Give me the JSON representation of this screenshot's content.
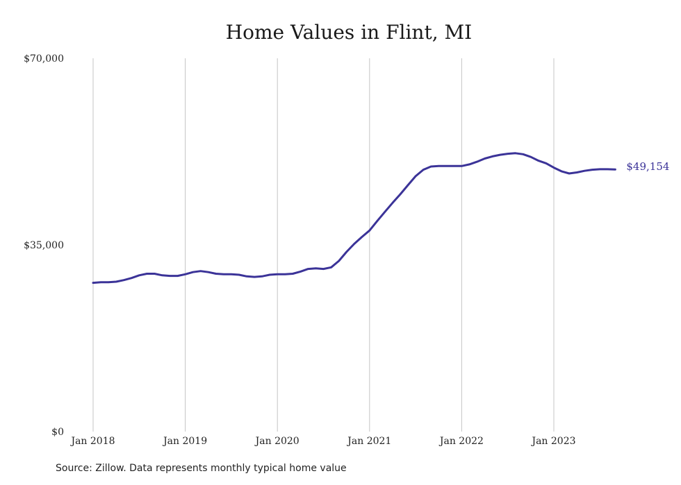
{
  "chart_data": {
    "type": "line",
    "title": "Home Values in Flint, MI",
    "xlabel": "",
    "ylabel": "",
    "ylim": [
      0,
      70000
    ],
    "y_ticks": [
      {
        "value": 0,
        "label": "$0"
      },
      {
        "value": 35000,
        "label": "$35,000"
      },
      {
        "value": 70000,
        "label": "$70,000"
      }
    ],
    "x_ticks": [
      {
        "index": 0,
        "label": "Jan 2018"
      },
      {
        "index": 12,
        "label": "Jan 2019"
      },
      {
        "index": 24,
        "label": "Jan 2020"
      },
      {
        "index": 36,
        "label": "Jan 2021"
      },
      {
        "index": 48,
        "label": "Jan 2022"
      },
      {
        "index": 60,
        "label": "Jan 2023"
      }
    ],
    "x_range_months": [
      0,
      69
    ],
    "grid": "vertical lines at year ticks",
    "line_color": "#3b3398",
    "series": [
      {
        "values": [
          27900,
          28000,
          28000,
          28100,
          28400,
          28800,
          29300,
          29600,
          29600,
          29300,
          29200,
          29200,
          29500,
          29900,
          30100,
          29900,
          29600,
          29500,
          29500,
          29400,
          29100,
          29000,
          29100,
          29400,
          29500,
          29500,
          29600,
          30000,
          30500,
          30600,
          30500,
          30800,
          32000,
          33700,
          35200,
          36500,
          37700,
          39500,
          41200,
          42900,
          44500,
          46200,
          47900,
          49100,
          49700,
          49800,
          49800,
          49800,
          49800,
          50100,
          50600,
          51200,
          51600,
          51900,
          52100,
          52200,
          52000,
          51500,
          50800,
          50300,
          49500,
          48800,
          48400,
          48600,
          48900,
          49100,
          49200,
          49200,
          49154
        ]
      }
    ],
    "end_label": "$49,154"
  },
  "source": "Source: Zillow. Data represents monthly typical home value"
}
